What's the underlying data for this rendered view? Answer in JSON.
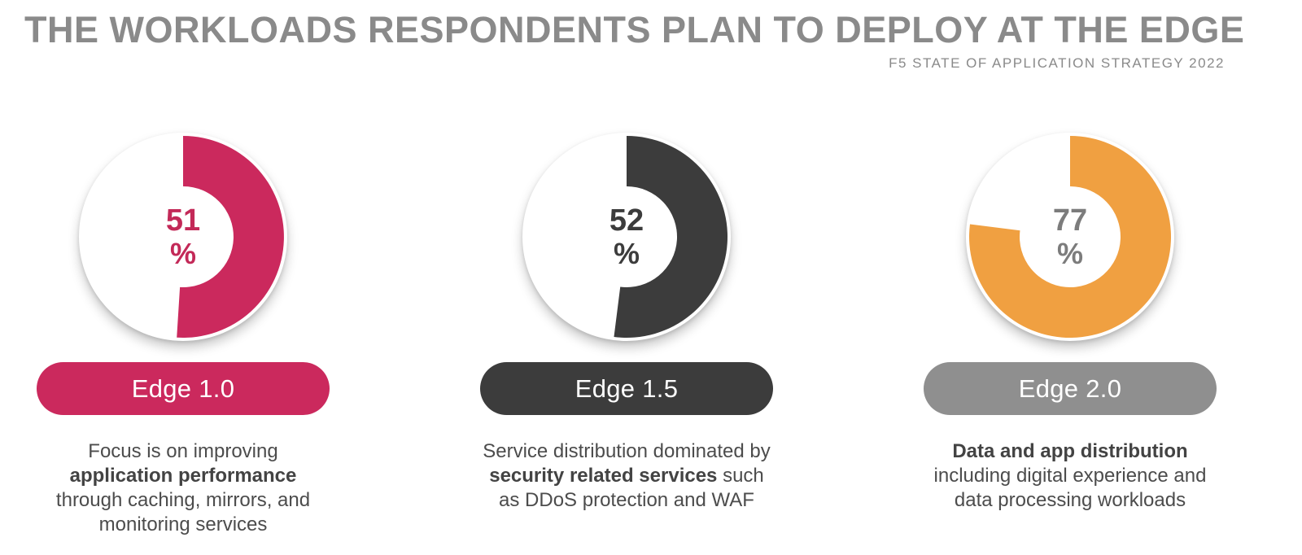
{
  "header": {
    "title": "THE WORKLOADS RESPONDENTS PLAN TO DEPLOY AT THE EDGE",
    "subtitle": "F5 STATE OF APPLICATION STRATEGY 2022"
  },
  "chart_data": {
    "type": "pie",
    "variant": "donut",
    "title": "THE WORKLOADS RESPONDENTS PLAN TO DEPLOY AT THE EDGE",
    "source": "F5 STATE OF APPLICATION STRATEGY 2022",
    "categories": [
      "Edge 1.0",
      "Edge 1.5",
      "Edge 2.0"
    ],
    "values": [
      51,
      52,
      77
    ],
    "unit": "%",
    "start_angle_deg": -90,
    "direction": "clockwise",
    "items": [
      {
        "label": "Edge 1.0",
        "value": 51,
        "unit": "%",
        "colors": {
          "arc": "#CB295D",
          "value": "#C32958",
          "pill": "#CB295D",
          "pill_text": "#FFFFFF"
        },
        "description_lines": [
          [
            {
              "text": "Focus is on improving",
              "bold": false
            }
          ],
          [
            {
              "text": "application performance",
              "bold": true
            }
          ],
          [
            {
              "text": "through caching, mirrors, and",
              "bold": false
            }
          ],
          [
            {
              "text": "monitoring services",
              "bold": false
            }
          ]
        ]
      },
      {
        "label": "Edge 1.5",
        "value": 52,
        "unit": "%",
        "colors": {
          "arc": "#3C3C3C",
          "value": "#3C3C3C",
          "pill": "#3C3C3C",
          "pill_text": "#FFFFFF"
        },
        "description_lines": [
          [
            {
              "text": "Service distribution dominated by",
              "bold": false
            }
          ],
          [
            {
              "text": "security related services",
              "bold": true
            },
            {
              "text": " such",
              "bold": false
            }
          ],
          [
            {
              "text": "as DDoS protection and WAF",
              "bold": false
            }
          ]
        ]
      },
      {
        "label": "Edge 2.0",
        "value": 77,
        "unit": "%",
        "colors": {
          "arc": "#F0A041",
          "value": "#7C7C7C",
          "pill": "#8F8F8F",
          "pill_text": "#FFFFFF"
        },
        "description_lines": [
          [
            {
              "text": "Data and app distribution",
              "bold": true
            }
          ],
          [
            {
              "text": "including digital experience and",
              "bold": false
            }
          ],
          [
            {
              "text": "data processing workloads",
              "bold": false
            }
          ]
        ]
      }
    ]
  }
}
